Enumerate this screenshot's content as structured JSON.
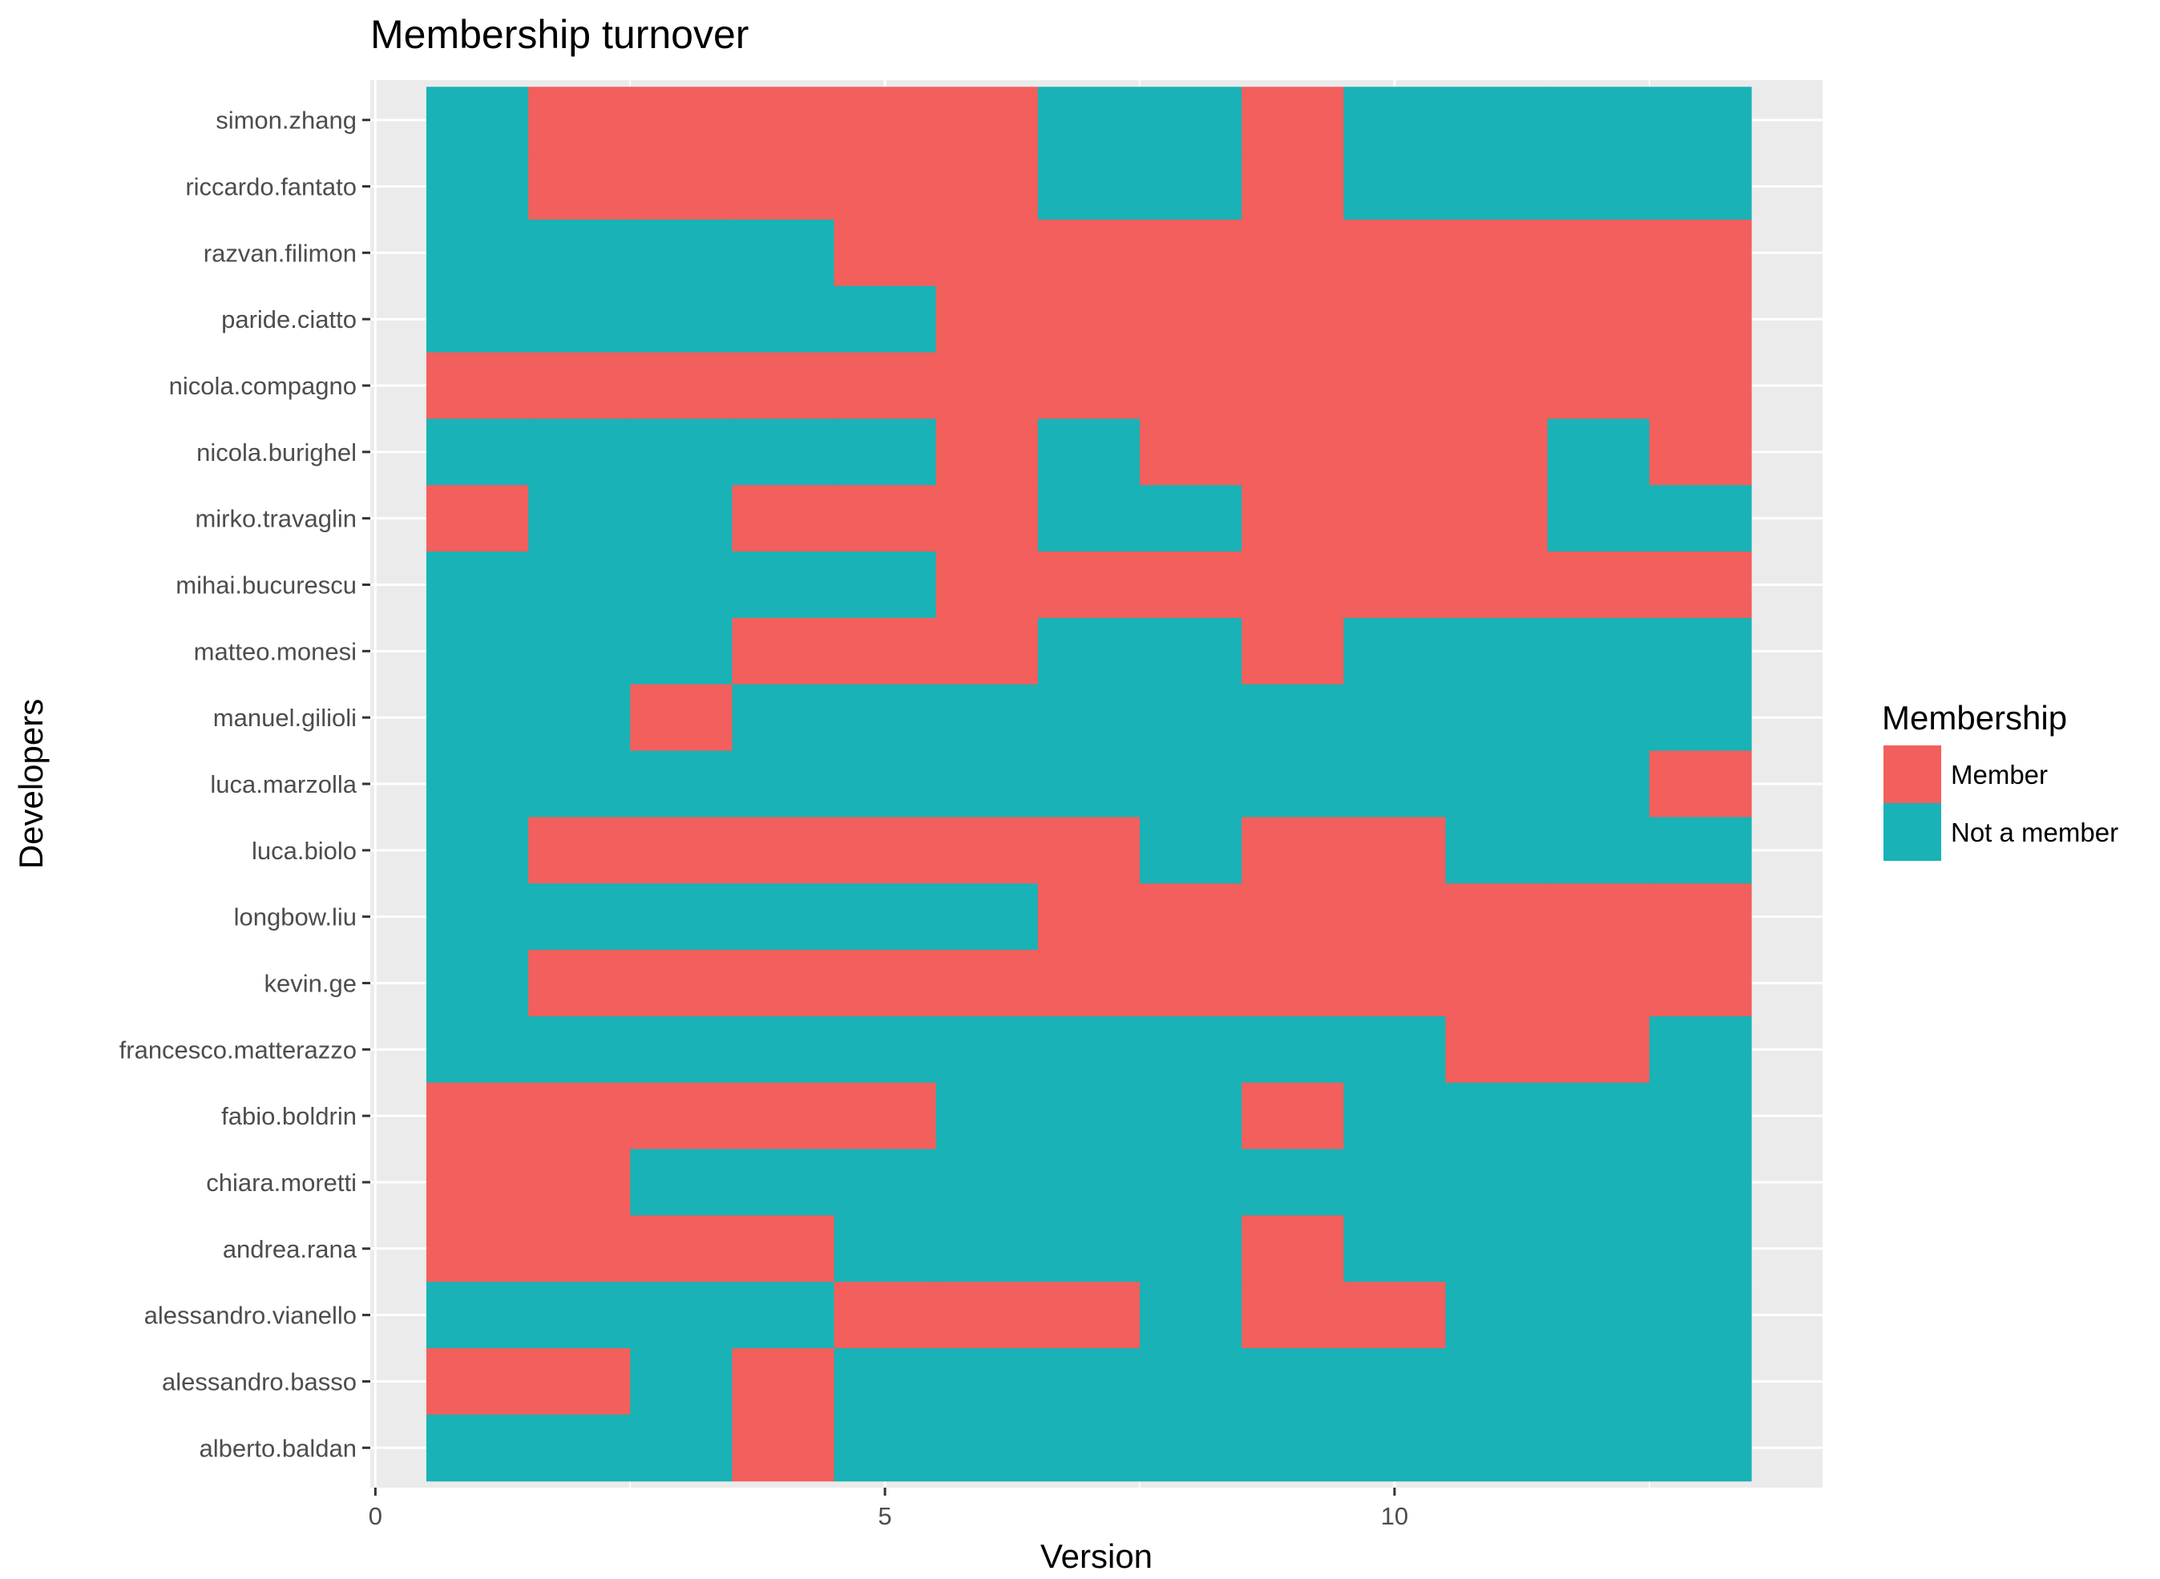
{
  "chart_data": {
    "type": "heatmap",
    "title": "Membership turnover",
    "xlabel": "Version",
    "ylabel": "Developers",
    "x_ticks": [
      0,
      5,
      10
    ],
    "xlim": [
      -0.05,
      14.2
    ],
    "versions": [
      1,
      2,
      3,
      4,
      5,
      6,
      7,
      8,
      9,
      10,
      11,
      12,
      13
    ],
    "legend": {
      "title": "Membership",
      "placement": "right",
      "entries": [
        {
          "key": "M",
          "label": "Member",
          "color": "#F25F5C"
        },
        {
          "key": "N",
          "label": "Not a member",
          "color": "#19B2B6"
        }
      ]
    },
    "grid": true,
    "developers": [
      {
        "name": "simon.zhang",
        "membership": [
          "N",
          "M",
          "M",
          "M",
          "M",
          "M",
          "N",
          "N",
          "M",
          "N",
          "N",
          "N",
          "N"
        ]
      },
      {
        "name": "riccardo.fantato",
        "membership": [
          "N",
          "M",
          "M",
          "M",
          "M",
          "M",
          "N",
          "N",
          "M",
          "N",
          "N",
          "N",
          "N"
        ]
      },
      {
        "name": "razvan.filimon",
        "membership": [
          "N",
          "N",
          "N",
          "N",
          "M",
          "M",
          "M",
          "M",
          "M",
          "M",
          "M",
          "M",
          "M"
        ]
      },
      {
        "name": "paride.ciatto",
        "membership": [
          "N",
          "N",
          "N",
          "N",
          "N",
          "M",
          "M",
          "M",
          "M",
          "M",
          "M",
          "M",
          "M"
        ]
      },
      {
        "name": "nicola.compagno",
        "membership": [
          "M",
          "M",
          "M",
          "M",
          "M",
          "M",
          "M",
          "M",
          "M",
          "M",
          "M",
          "M",
          "M"
        ]
      },
      {
        "name": "nicola.burighel",
        "membership": [
          "N",
          "N",
          "N",
          "N",
          "N",
          "M",
          "N",
          "M",
          "M",
          "M",
          "M",
          "N",
          "M"
        ]
      },
      {
        "name": "mirko.travaglin",
        "membership": [
          "M",
          "N",
          "N",
          "M",
          "M",
          "M",
          "N",
          "N",
          "M",
          "M",
          "M",
          "N",
          "N"
        ]
      },
      {
        "name": "mihai.bucurescu",
        "membership": [
          "N",
          "N",
          "N",
          "N",
          "N",
          "M",
          "M",
          "M",
          "M",
          "M",
          "M",
          "M",
          "M"
        ]
      },
      {
        "name": "matteo.monesi",
        "membership": [
          "N",
          "N",
          "N",
          "M",
          "M",
          "M",
          "N",
          "N",
          "M",
          "N",
          "N",
          "N",
          "N"
        ]
      },
      {
        "name": "manuel.gilioli",
        "membership": [
          "N",
          "N",
          "M",
          "N",
          "N",
          "N",
          "N",
          "N",
          "N",
          "N",
          "N",
          "N",
          "N"
        ]
      },
      {
        "name": "luca.marzolla",
        "membership": [
          "N",
          "N",
          "N",
          "N",
          "N",
          "N",
          "N",
          "N",
          "N",
          "N",
          "N",
          "N",
          "M"
        ]
      },
      {
        "name": "luca.biolo",
        "membership": [
          "N",
          "M",
          "M",
          "M",
          "M",
          "M",
          "M",
          "N",
          "M",
          "M",
          "N",
          "N",
          "N"
        ]
      },
      {
        "name": "longbow.liu",
        "membership": [
          "N",
          "N",
          "N",
          "N",
          "N",
          "N",
          "M",
          "M",
          "M",
          "M",
          "M",
          "M",
          "M"
        ]
      },
      {
        "name": "kevin.ge",
        "membership": [
          "N",
          "M",
          "M",
          "M",
          "M",
          "M",
          "M",
          "M",
          "M",
          "M",
          "M",
          "M",
          "M"
        ]
      },
      {
        "name": "francesco.matterazzo",
        "membership": [
          "N",
          "N",
          "N",
          "N",
          "N",
          "N",
          "N",
          "N",
          "N",
          "N",
          "M",
          "M",
          "N"
        ]
      },
      {
        "name": "fabio.boldrin",
        "membership": [
          "M",
          "M",
          "M",
          "M",
          "M",
          "N",
          "N",
          "N",
          "M",
          "N",
          "N",
          "N",
          "N"
        ]
      },
      {
        "name": "chiara.moretti",
        "membership": [
          "M",
          "M",
          "N",
          "N",
          "N",
          "N",
          "N",
          "N",
          "N",
          "N",
          "N",
          "N",
          "N"
        ]
      },
      {
        "name": "andrea.rana",
        "membership": [
          "M",
          "M",
          "M",
          "M",
          "N",
          "N",
          "N",
          "N",
          "M",
          "N",
          "N",
          "N",
          "N"
        ]
      },
      {
        "name": "alessandro.vianello",
        "membership": [
          "N",
          "N",
          "N",
          "N",
          "M",
          "M",
          "M",
          "N",
          "M",
          "M",
          "N",
          "N",
          "N"
        ]
      },
      {
        "name": "alessandro.basso",
        "membership": [
          "M",
          "M",
          "N",
          "M",
          "N",
          "N",
          "N",
          "N",
          "N",
          "N",
          "N",
          "N",
          "N"
        ]
      },
      {
        "name": "alberto.baldan",
        "membership": [
          "N",
          "N",
          "N",
          "M",
          "N",
          "N",
          "N",
          "N",
          "N",
          "N",
          "N",
          "N",
          "N"
        ]
      }
    ]
  }
}
